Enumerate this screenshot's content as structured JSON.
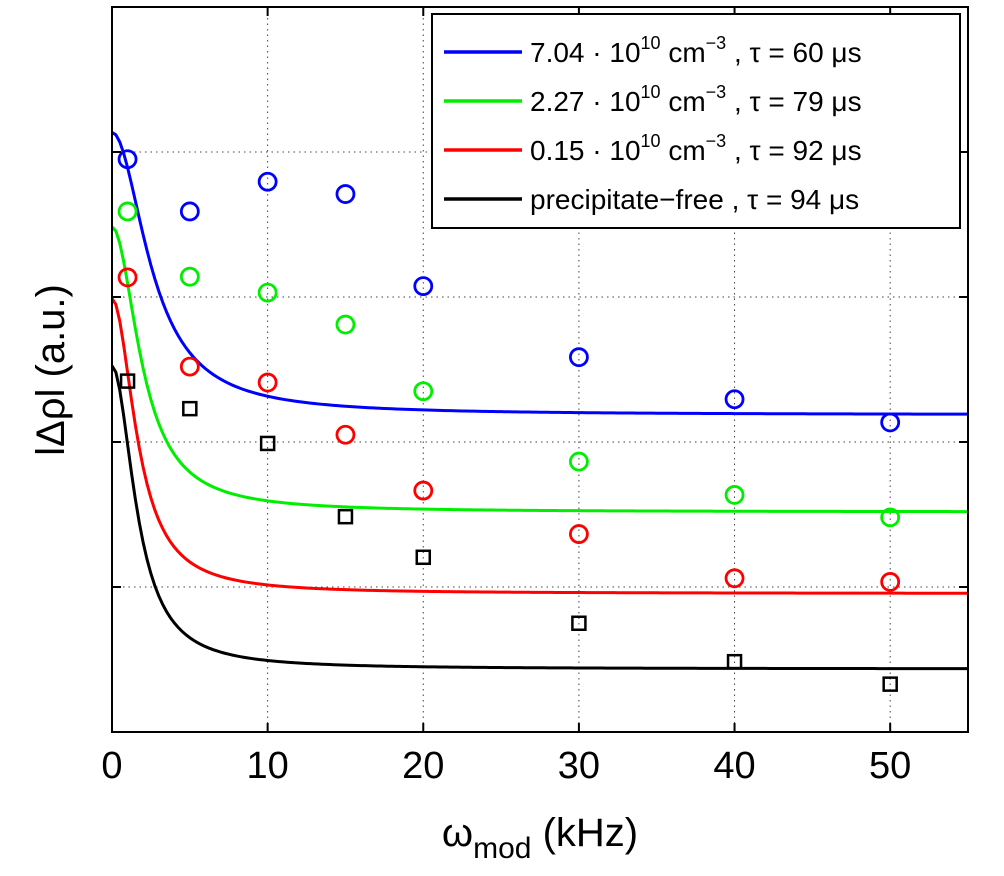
{
  "chart_data": {
    "type": "line",
    "xlabel": {
      "main": "ω",
      "sub": "mod",
      "rest": " (kHz)"
    },
    "ylabel": "lΔρl (a.u.)",
    "xlim": [
      0,
      55
    ],
    "ylim": [
      0,
      1
    ],
    "xticks": [
      0,
      10,
      20,
      30,
      40,
      50
    ],
    "xtick_labels": [
      "0",
      "10",
      "20",
      "30",
      "40",
      "50"
    ],
    "yticks": [
      0.2,
      0.4,
      0.6,
      0.8,
      1.0
    ],
    "ytick_labels": [
      "",
      "",
      "",
      "",
      ""
    ],
    "grid": true,
    "legend_position": "top-right",
    "series": [
      {
        "name": "7.04 · 10^10 cm^-3 , τ = 60 μs",
        "legend": {
          "pre": "7.04 · 10",
          "sup1": "10",
          "mid": " cm",
          "sup2": "−3",
          "post": " , τ = 60 μs"
        },
        "color": "#0000ff",
        "marker": "circle",
        "fit": {
          "x0": 0,
          "a": 0.4375,
          "b": 0.3896,
          "tau": 0.06
        },
        "points": {
          "x": [
            1,
            5,
            10,
            15,
            20,
            30,
            40,
            50
          ],
          "y": [
            0.79,
            0.718,
            0.759,
            0.742,
            0.615,
            0.517,
            0.459,
            0.427
          ]
        }
      },
      {
        "name": "2.27 · 10^10 cm^-3 , τ = 79 μs",
        "legend": {
          "pre": "2.27 · 10",
          "sup1": "10",
          "mid": " cm",
          "sup2": "−3",
          "post": " , τ = 79 μs"
        },
        "color": "#00ee00",
        "marker": "circle",
        "fit": {
          "x0": 0,
          "a": 0.3035,
          "b": 0.3934,
          "tau": 0.079
        },
        "points": {
          "x": [
            1,
            5,
            10,
            15,
            20,
            30,
            40,
            50
          ],
          "y": [
            0.718,
            0.628,
            0.606,
            0.562,
            0.47,
            0.373,
            0.327,
            0.296
          ]
        }
      },
      {
        "name": "0.15 · 10^10 cm^-3 , τ = 92 μs",
        "legend": {
          "pre": "0.15 · 10",
          "sup1": "10",
          "mid": " cm",
          "sup2": "−3",
          "post": " , τ = 92 μs"
        },
        "color": "#ff0000",
        "marker": "circle",
        "fit": {
          "x0": 0,
          "a": 0.191,
          "b": 0.407,
          "tau": 0.092
        },
        "points": {
          "x": [
            1,
            5,
            10,
            15,
            20,
            30,
            40,
            50
          ],
          "y": [
            0.627,
            0.504,
            0.482,
            0.41,
            0.333,
            0.273,
            0.212,
            0.207
          ]
        }
      },
      {
        "name": "precipitate-free , τ = 94 μs",
        "legend": {
          "pre": "precipitate−free  , τ = 94 μs",
          "sup1": "",
          "mid": "",
          "sup2": "",
          "post": ""
        },
        "color": "#000000",
        "marker": "square",
        "fit": {
          "x0": 0,
          "a": 0.087,
          "b": 0.4181,
          "tau": 0.094
        },
        "points": {
          "x": [
            1,
            5,
            10,
            15,
            20,
            30,
            40,
            50
          ],
          "y": [
            0.484,
            0.446,
            0.398,
            0.297,
            0.241,
            0.15,
            0.097,
            0.066
          ]
        }
      }
    ]
  }
}
